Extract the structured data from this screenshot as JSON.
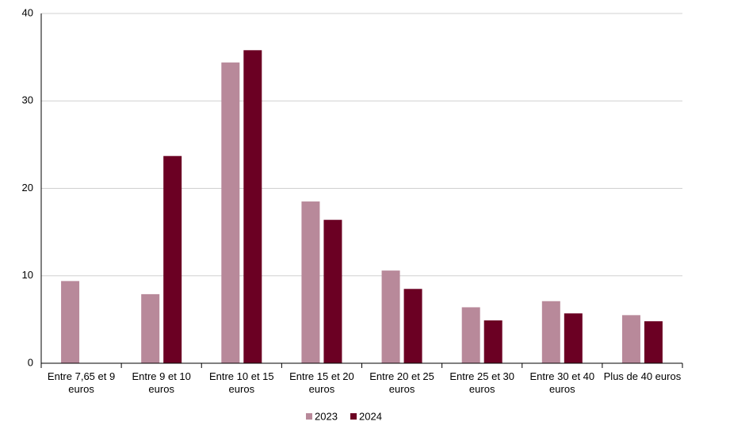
{
  "chart_data": {
    "type": "bar",
    "categories": [
      "Entre 7,65 et 9 euros",
      "Entre 9 et 10 euros",
      "Entre 10 et 15 euros",
      "Entre 15 et 20 euros",
      "Entre 20 et 25 euros",
      "Entre 25 et 30 euros",
      "Entre 30 et 40 euros",
      "Plus de 40 euros"
    ],
    "series": [
      {
        "name": "2023",
        "color": "#b8899a",
        "values": [
          9.4,
          7.9,
          34.4,
          18.5,
          10.6,
          6.4,
          7.1,
          5.5
        ]
      },
      {
        "name": "2024",
        "color": "#6b0023",
        "values": [
          null,
          23.7,
          35.8,
          16.4,
          8.5,
          4.9,
          5.7,
          4.8
        ]
      }
    ],
    "ylim": [
      0,
      40
    ],
    "yticks": [
      0,
      10,
      20,
      30,
      40
    ],
    "grid": true,
    "legend": "bottom"
  }
}
